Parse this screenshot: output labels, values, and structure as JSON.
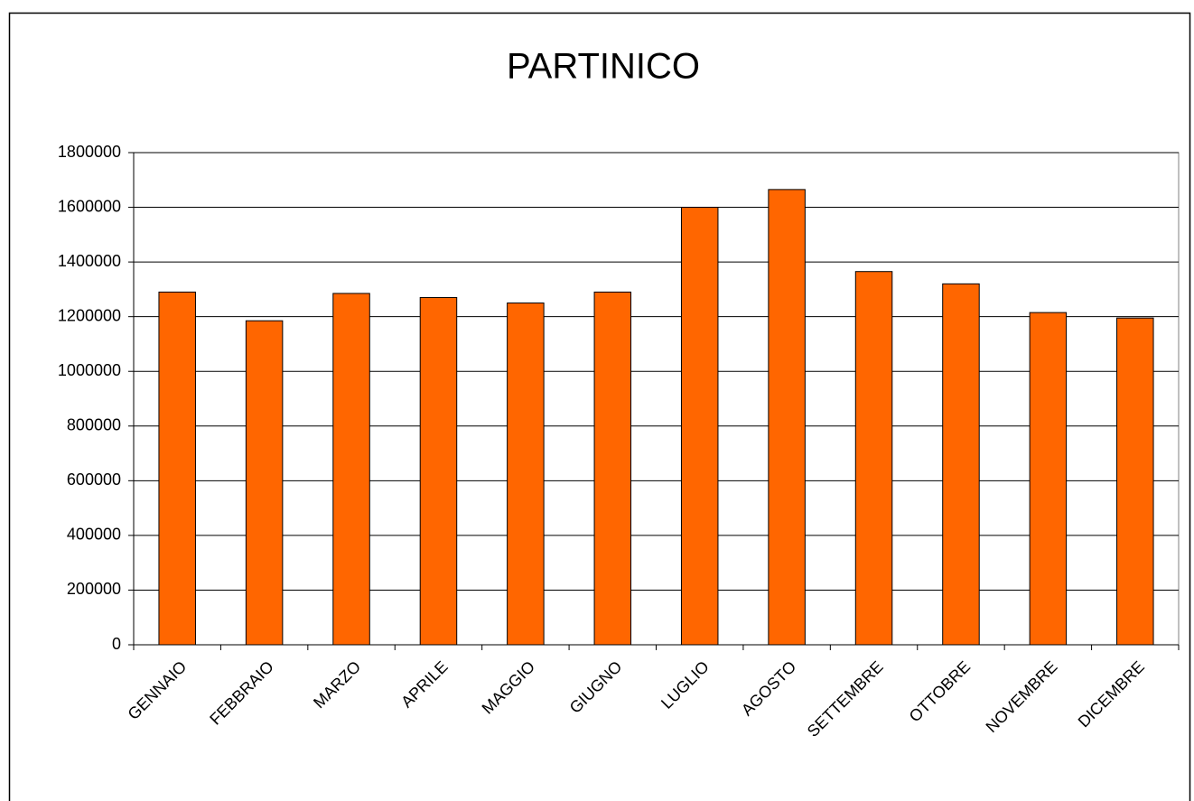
{
  "chart_data": {
    "type": "bar",
    "title": "PARTINICO",
    "categories": [
      "GENNAIO",
      "FEBBRAIO",
      "MARZO",
      "APRILE",
      "MAGGIO",
      "GIUGNO",
      "LUGLIO",
      "AGOSTO",
      "SETTEMBRE",
      "OTTOBRE",
      "NOVEMBRE",
      "DICEMBRE"
    ],
    "values": [
      1290000,
      1185000,
      1285000,
      1270000,
      1250000,
      1290000,
      1600000,
      1665000,
      1365000,
      1320000,
      1215000,
      1195000
    ],
    "color": "#ff6600",
    "ylim": [
      0,
      1800000
    ],
    "yticks": [
      0,
      200000,
      400000,
      600000,
      800000,
      1000000,
      1200000,
      1400000,
      1600000,
      1800000
    ],
    "grid": true
  }
}
